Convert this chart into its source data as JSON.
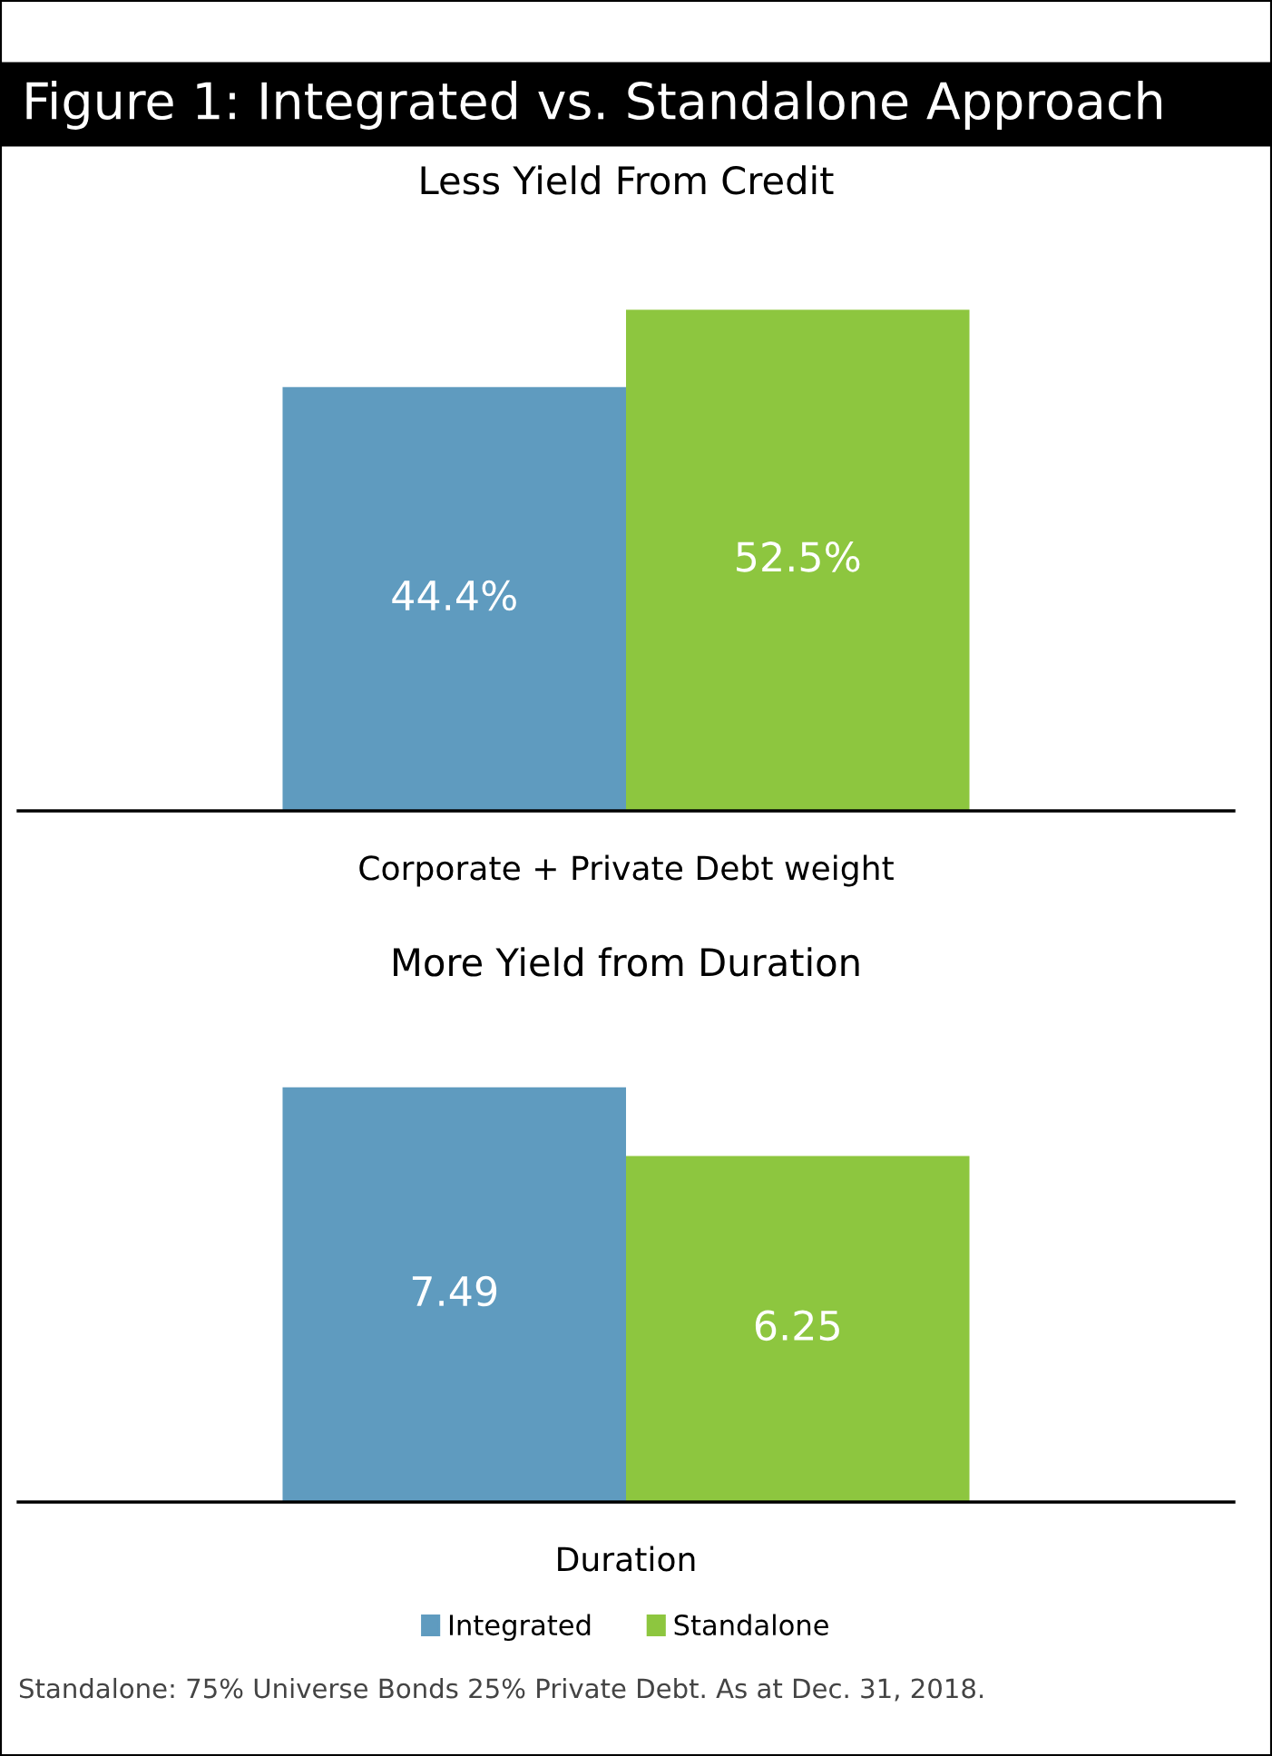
{
  "chart_data": [
    {
      "type": "bar",
      "title": "Figure 1: Integrated vs. Standalone Approach",
      "subtitle": "Less Yield From Credit",
      "xlabel": "Corporate + Private Debt weight",
      "categories": [
        null
      ],
      "legend": false,
      "series": [
        {
          "color": "#5f9bbf",
          "values": [
            44.4
          ],
          "value_labels": [
            "44.4%"
          ]
        },
        {
          "color": "#8dc63f",
          "values": [
            52.5
          ],
          "value_labels": [
            "52.5%"
          ]
        }
      ]
    },
    {
      "type": "bar",
      "title": "More Yield from Duration",
      "xlabel": "Duration",
      "categories": [
        null
      ],
      "legend": "bottom",
      "annotations": [
        "Standalone: 75% Universe Bonds 25% Private Debt. As at Dec. 31, 2018."
      ],
      "series": [
        {
          "name": "Integrated",
          "color": "#5f9bbf",
          "values": [
            7.49
          ],
          "value_labels": [
            "7.49"
          ]
        },
        {
          "name": "Standalone",
          "color": "#8dc63f",
          "values": [
            6.25
          ],
          "value_labels": [
            "6.25"
          ]
        }
      ]
    }
  ]
}
